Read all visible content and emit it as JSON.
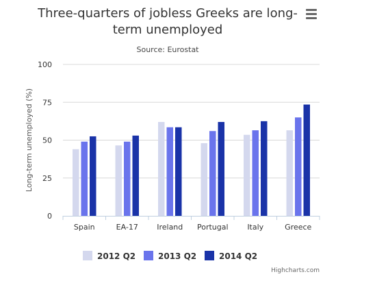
{
  "chart": {
    "title_lines": [
      "Three-quarters of jobless Greeks are long-",
      "term unemployed"
    ],
    "subtitle": "Source: Eurostat",
    "credits": "Highcharts.com",
    "menu_icon": "hamburger-menu-icon"
  },
  "chart_data": {
    "type": "bar",
    "title": "Three-quarters of jobless Greeks are long-term unemployed",
    "subtitle": "Source: Eurostat",
    "xlabel": "",
    "ylabel": "Long-term unemployed (%)",
    "ylim": [
      0,
      100
    ],
    "yticks": [
      0,
      25,
      50,
      75,
      100
    ],
    "grid": true,
    "legend_position": "bottom",
    "categories": [
      "Spain",
      "EA-17",
      "Ireland",
      "Portugal",
      "Italy",
      "Greece"
    ],
    "series": [
      {
        "name": "2012 Q2",
        "color": "#d4d8ee",
        "values": [
          44,
          46.5,
          62,
          48,
          53.5,
          56.5
        ]
      },
      {
        "name": "2013 Q2",
        "color": "#6a74ec",
        "values": [
          49,
          49,
          58.5,
          56,
          56.5,
          65
        ]
      },
      {
        "name": "2014 Q2",
        "color": "#1a33a8",
        "values": [
          52.5,
          53,
          58.5,
          62,
          62.5,
          73.5
        ]
      }
    ]
  }
}
